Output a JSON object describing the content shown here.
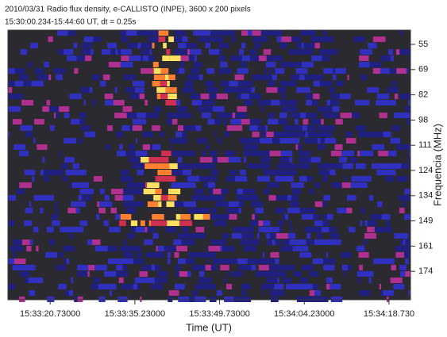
{
  "chart_data": {
    "type": "spectrogram",
    "title": "2010/03/31  Radio flux density, e-CALLISTO (INPE),  3600 x 200 pixels",
    "subtitle": "15:30:00.234-15:44:60 UT,  dt = 0.25s",
    "x_label": "Time (UT)",
    "y_label": "Frequencia (MHz)",
    "xlim": [
      13.5,
      82.4
    ],
    "xticks": [
      {
        "value": 20.73,
        "label": "15:33:20.73000"
      },
      {
        "value": 35.23,
        "label": "15:33:35.23000"
      },
      {
        "value": 49.73,
        "label": "15:33:49.73000"
      },
      {
        "value": 64.23,
        "label": "15:34:04.23000"
      },
      {
        "value": 78.73,
        "label": "15:34:18.730"
      }
    ],
    "yticks": [
      55,
      69,
      82,
      98,
      111,
      124,
      134,
      149,
      161,
      174
    ]
  }
}
